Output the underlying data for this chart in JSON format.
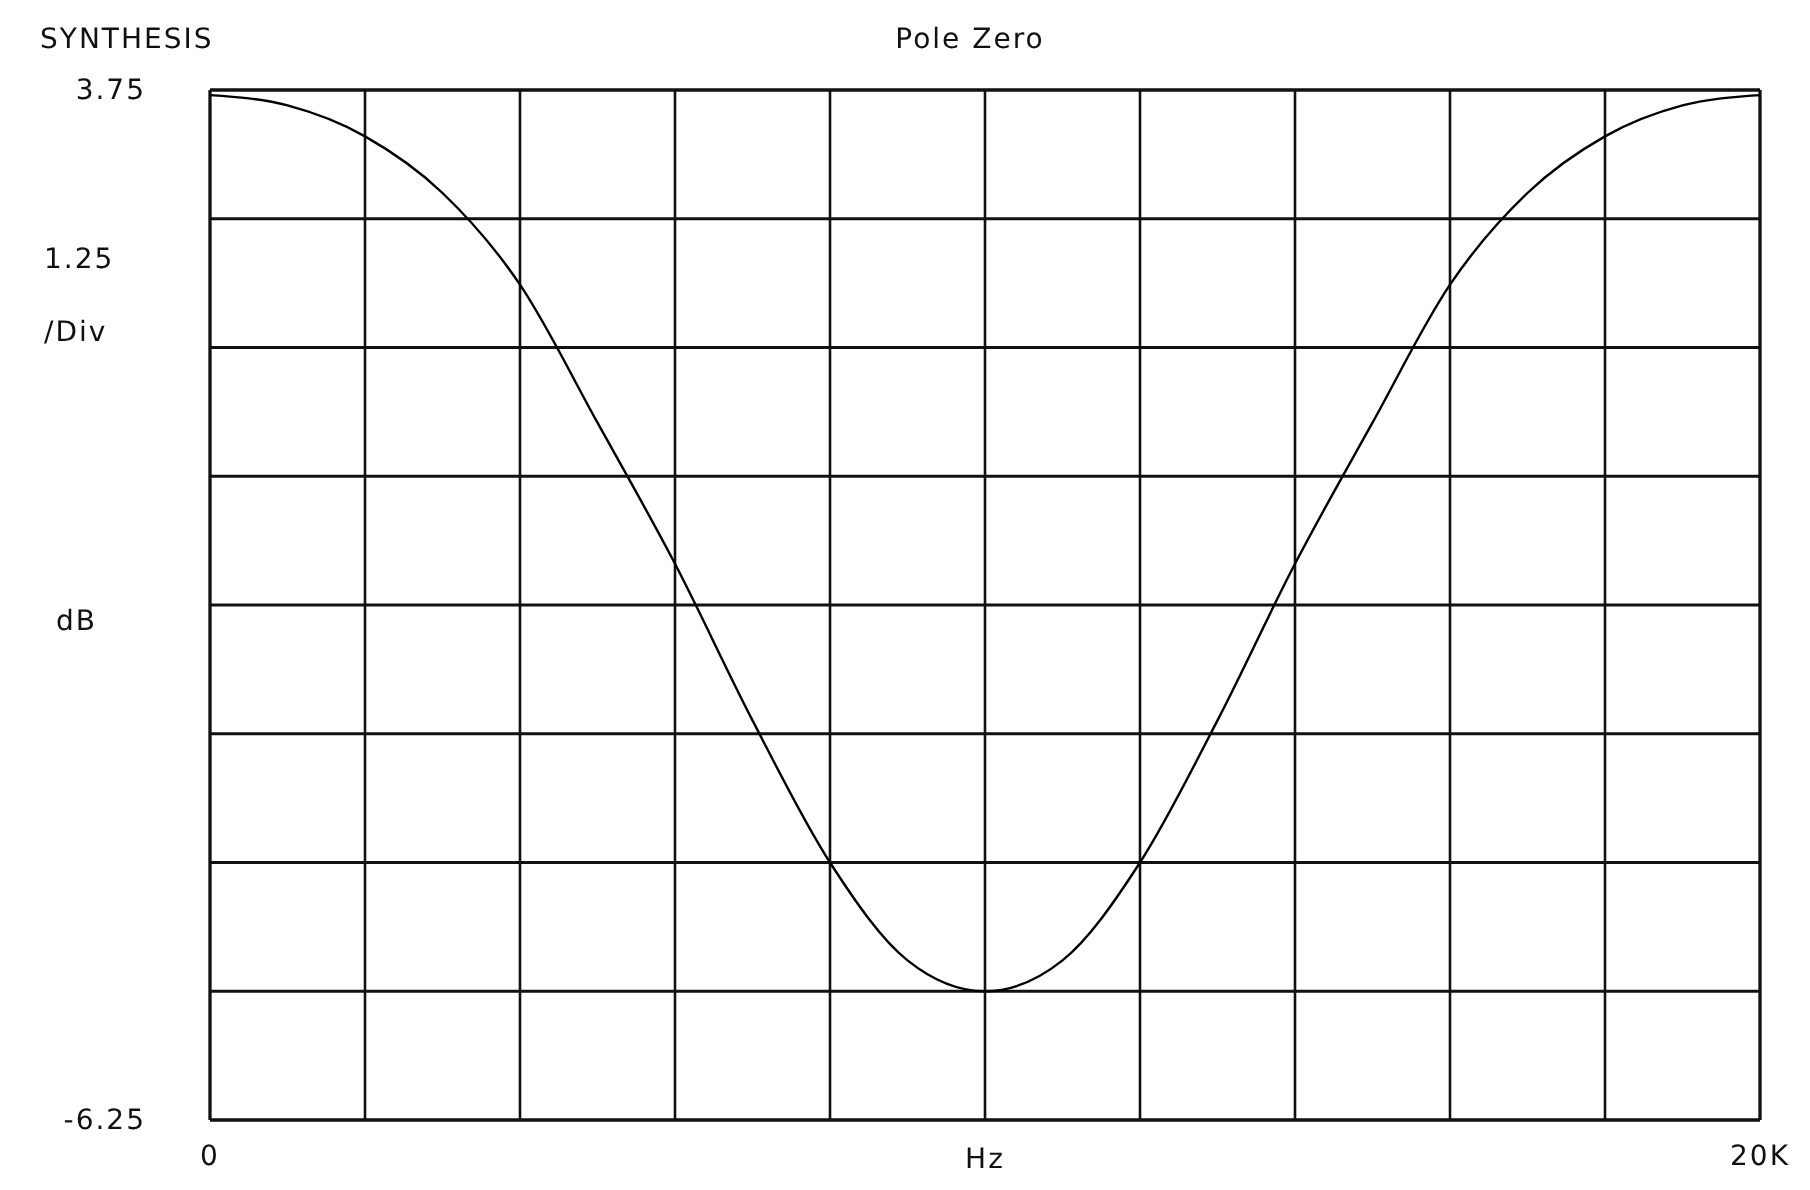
{
  "chart_data": {
    "type": "line",
    "title": "Pole Zero",
    "xlabel": "Hz",
    "ylabel": "dB",
    "annotations": [
      "SYNTHESIS",
      "1.25 /Div"
    ],
    "x": [
      0,
      1000,
      2000,
      3000,
      4000,
      5000,
      6000,
      7000,
      8000,
      9000,
      10000,
      11000,
      12000,
      13000,
      14000,
      15000,
      16000,
      17000,
      18000,
      19000,
      20000
    ],
    "series": [
      {
        "color": "#000000",
        "values": [
          3.7,
          3.6,
          3.3,
          2.75,
          1.86,
          0.52,
          -0.85,
          -2.37,
          -3.75,
          -4.7,
          -5.0,
          -4.7,
          -3.75,
          -2.37,
          -0.85,
          0.52,
          1.86,
          2.75,
          3.3,
          3.6,
          3.7
        ]
      }
    ],
    "xlim": [
      0,
      20000
    ],
    "xticks": [
      {
        "value": 0,
        "label": "0"
      },
      {
        "value": 2000,
        "label": null
      },
      {
        "value": 4000,
        "label": null
      },
      {
        "value": 6000,
        "label": null
      },
      {
        "value": 8000,
        "label": null
      },
      {
        "value": 10000,
        "label": null
      },
      {
        "value": 12000,
        "label": null
      },
      {
        "value": 14000,
        "label": null
      },
      {
        "value": 16000,
        "label": null
      },
      {
        "value": 18000,
        "label": null
      },
      {
        "value": 20000,
        "label": "20K"
      }
    ],
    "ylim": [
      -6.25,
      3.75
    ],
    "yticks": [
      {
        "value": -6.25,
        "label": "-6.25"
      },
      {
        "value": -5,
        "label": null
      },
      {
        "value": -3.75,
        "label": null
      },
      {
        "value": -2.5,
        "label": null
      },
      {
        "value": -1.25,
        "label": null
      },
      {
        "value": 0,
        "label": null
      },
      {
        "value": 1.25,
        "label": null
      },
      {
        "value": 2.5,
        "label": null
      },
      {
        "value": 3.75,
        "label": "3.75"
      }
    ],
    "grid": true,
    "marker": "none",
    "line_style": "solid"
  }
}
